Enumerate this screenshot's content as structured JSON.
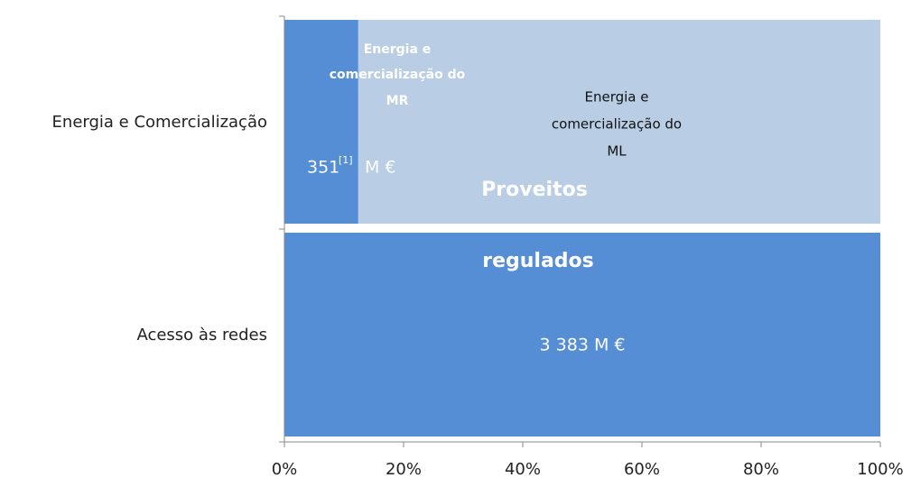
{
  "chart_data": {
    "type": "bar",
    "orientation": "horizontal",
    "stacked": true,
    "categories": [
      "Energia e Comercialização",
      "Acesso às redes"
    ],
    "series": [
      {
        "color": "#558ed5",
        "values": [
          12.4,
          100
        ]
      },
      {
        "color": "#b9cde5",
        "values": [
          87.6,
          0
        ]
      }
    ],
    "xlim": [
      0,
      100
    ],
    "xticks": [
      {
        "value": 0,
        "label": "0%"
      },
      {
        "value": 20,
        "label": "20%"
      },
      {
        "value": 40,
        "label": "40%"
      },
      {
        "value": 60,
        "label": "60%"
      },
      {
        "value": 80,
        "label": "80%"
      },
      {
        "value": 100,
        "label": "100%"
      }
    ],
    "annotations": [
      [
        "Energia e",
        "comercialização do",
        "MR"
      ],
      [
        "Energia e",
        "comercialização do",
        "ML"
      ],
      "351",
      "[1]",
      "M €",
      "Proveitos",
      "regulados",
      "3 383 M €"
    ]
  }
}
